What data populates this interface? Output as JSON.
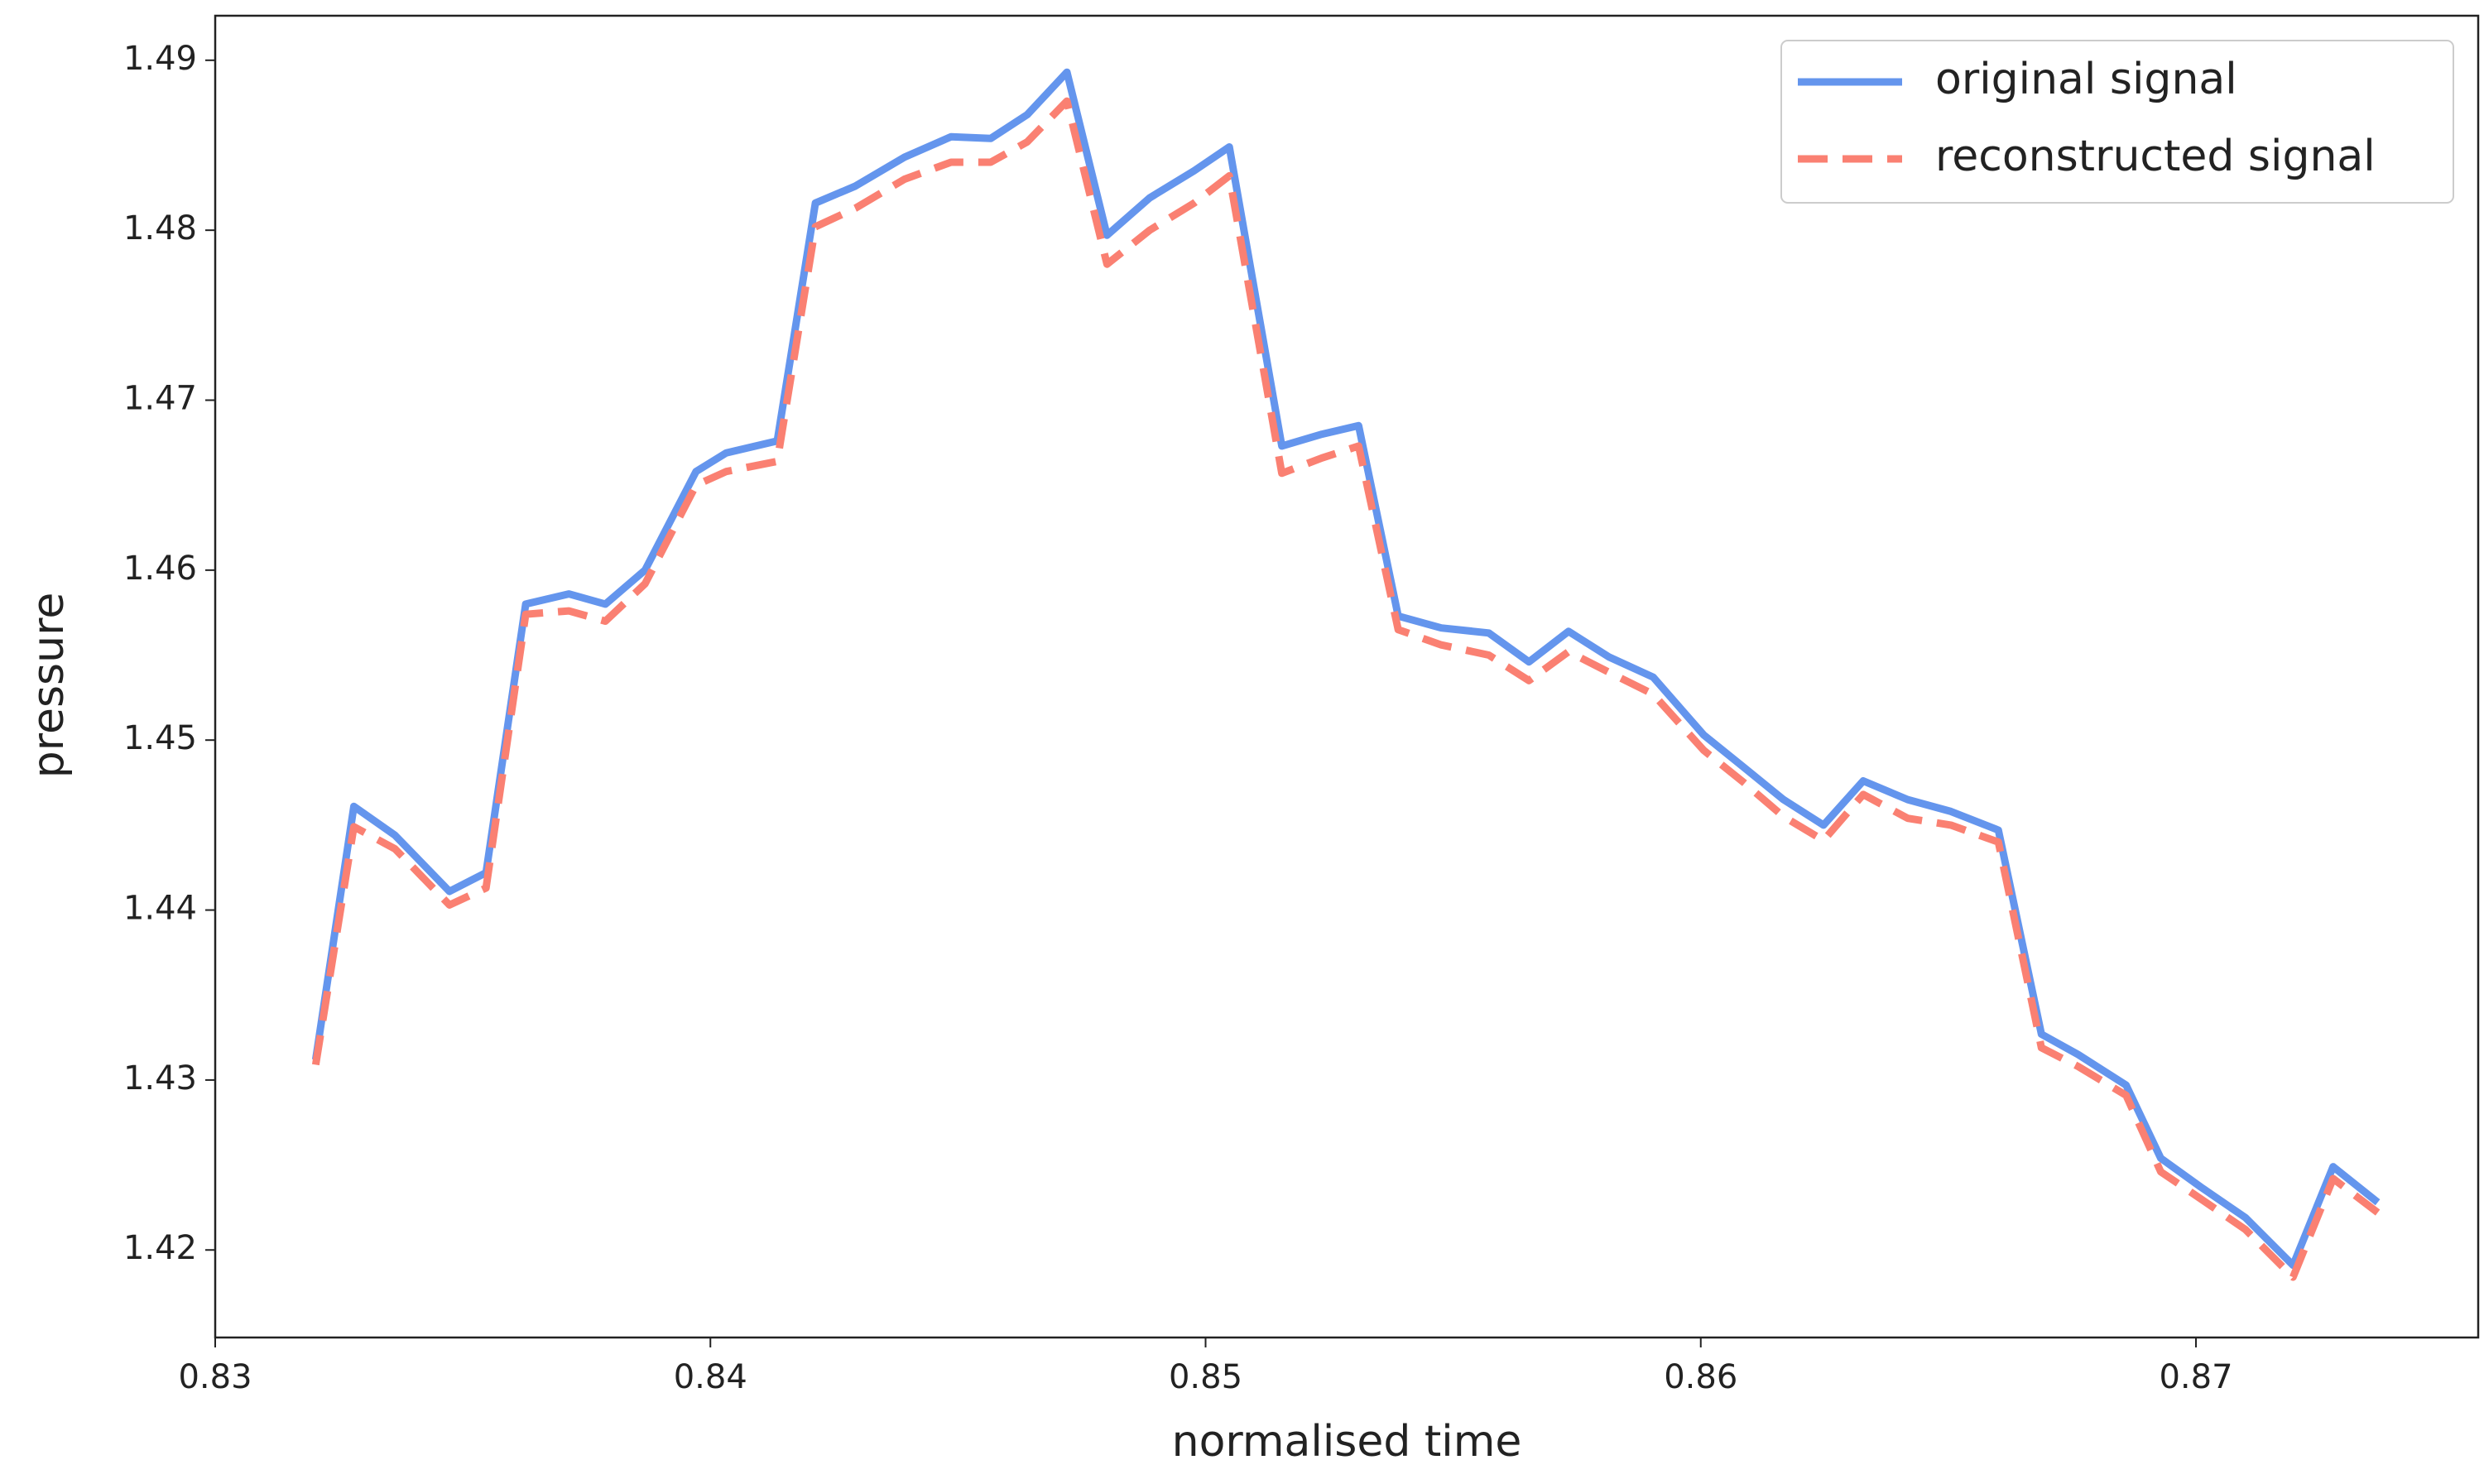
{
  "chart_data": {
    "type": "line",
    "xlabel": "normalised time",
    "ylabel": "pressure",
    "x": [
      0.83203,
      0.8328,
      0.83363,
      0.83473,
      0.83547,
      0.83627,
      0.83714,
      0.83788,
      0.83868,
      0.83971,
      0.84032,
      0.84135,
      0.84212,
      0.84293,
      0.84392,
      0.84486,
      0.84566,
      0.8464,
      0.8472,
      0.84801,
      0.84887,
      0.84977,
      0.85048,
      0.85154,
      0.85235,
      0.85309,
      0.85389,
      0.85476,
      0.85572,
      0.85653,
      0.85733,
      0.85814,
      0.85904,
      0.86006,
      0.86087,
      0.86167,
      0.86248,
      0.86328,
      0.86418,
      0.86505,
      0.86601,
      0.86688,
      0.86762,
      0.86859,
      0.86929,
      0.8701,
      0.871,
      0.87196,
      0.87277,
      0.87367
    ],
    "series": [
      {
        "name": "original signal",
        "color": "#6495ed",
        "dash": "solid",
        "values": [
          1.4312,
          1.4461,
          1.4444,
          1.4411,
          1.4422,
          1.458,
          1.4586,
          1.458,
          1.46,
          1.4658,
          1.4669,
          1.4676,
          1.4816,
          1.4826,
          1.4843,
          1.4855,
          1.4854,
          1.4868,
          1.4893,
          1.4797,
          1.4819,
          1.4835,
          1.4849,
          1.4673,
          1.468,
          1.4685,
          1.4573,
          1.4566,
          1.4563,
          1.4546,
          1.4564,
          1.4549,
          1.4537,
          1.4503,
          1.4484,
          1.4465,
          1.445,
          1.4476,
          1.4465,
          1.4458,
          1.4447,
          1.4327,
          1.4315,
          1.4297,
          1.4254,
          1.4237,
          1.4219,
          1.4191,
          1.4249,
          1.4228
        ]
      },
      {
        "name": "reconstructed signal",
        "color": "#fa8072",
        "dash": "dashed",
        "values": [
          1.4309,
          1.4449,
          1.4436,
          1.4403,
          1.4413,
          1.4574,
          1.4576,
          1.457,
          1.4592,
          1.465,
          1.4658,
          1.4664,
          1.4802,
          1.4813,
          1.483,
          1.484,
          1.484,
          1.4852,
          1.4876,
          1.478,
          1.48,
          1.4816,
          1.4832,
          1.4657,
          1.4666,
          1.4673,
          1.4565,
          1.4556,
          1.455,
          1.4535,
          1.4552,
          1.454,
          1.4527,
          1.4494,
          1.4475,
          1.4455,
          1.4441,
          1.4468,
          1.4454,
          1.445,
          1.444,
          1.4319,
          1.4308,
          1.4291,
          1.4246,
          1.423,
          1.4212,
          1.4184,
          1.4242,
          1.4222
        ]
      }
    ],
    "xlim": [
      0.83,
      0.8757
    ],
    "xticks": [
      0.83,
      0.84,
      0.85,
      0.86,
      0.87
    ],
    "ylim": [
      1.41485,
      1.49262
    ],
    "yticks": [
      1.42,
      1.43,
      1.44,
      1.45,
      1.46,
      1.47,
      1.48,
      1.49
    ],
    "grid": false,
    "legend": "upper right"
  }
}
